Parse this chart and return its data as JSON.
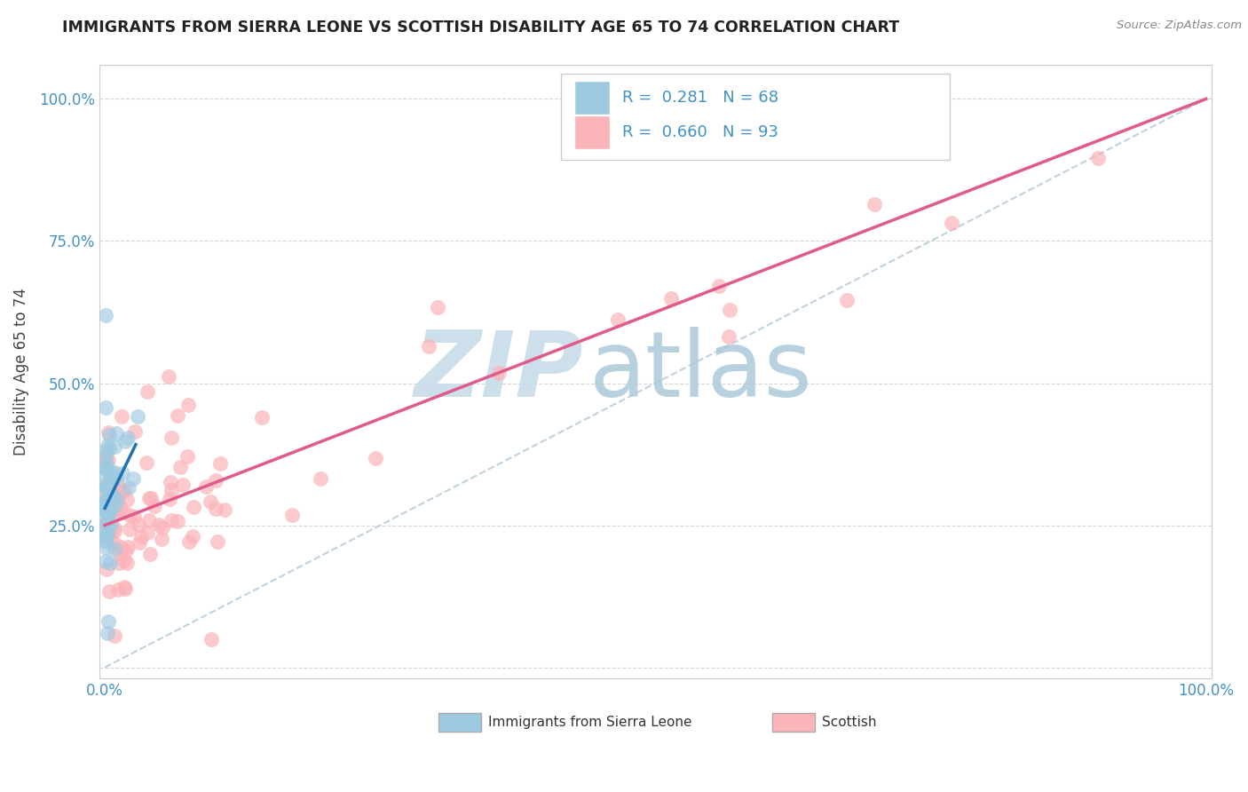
{
  "title": "IMMIGRANTS FROM SIERRA LEONE VS SCOTTISH DISABILITY AGE 65 TO 74 CORRELATION CHART",
  "source": "Source: ZipAtlas.com",
  "ylabel": "Disability Age 65 to 74",
  "sierra_leone_color": "#9ecae1",
  "sierra_leone_edge": "#6baed6",
  "scottish_color": "#fbb4b9",
  "scottish_edge": "#f768a1",
  "sierra_leone_line_color": "#2171b5",
  "scottish_line_color": "#e05a8a",
  "ref_line_color": "#aec7d8",
  "title_color": "#222222",
  "axis_color": "#4292c6",
  "source_color": "#888888",
  "sierra_leone_R": 0.281,
  "sierra_leone_N": 68,
  "scottish_R": 0.66,
  "scottish_N": 93,
  "legend_text_color": "#4292c6",
  "grid_color": "#dddddd",
  "watermark_zip_color": "#c8dce8",
  "watermark_atlas_color": "#b0ccdc"
}
